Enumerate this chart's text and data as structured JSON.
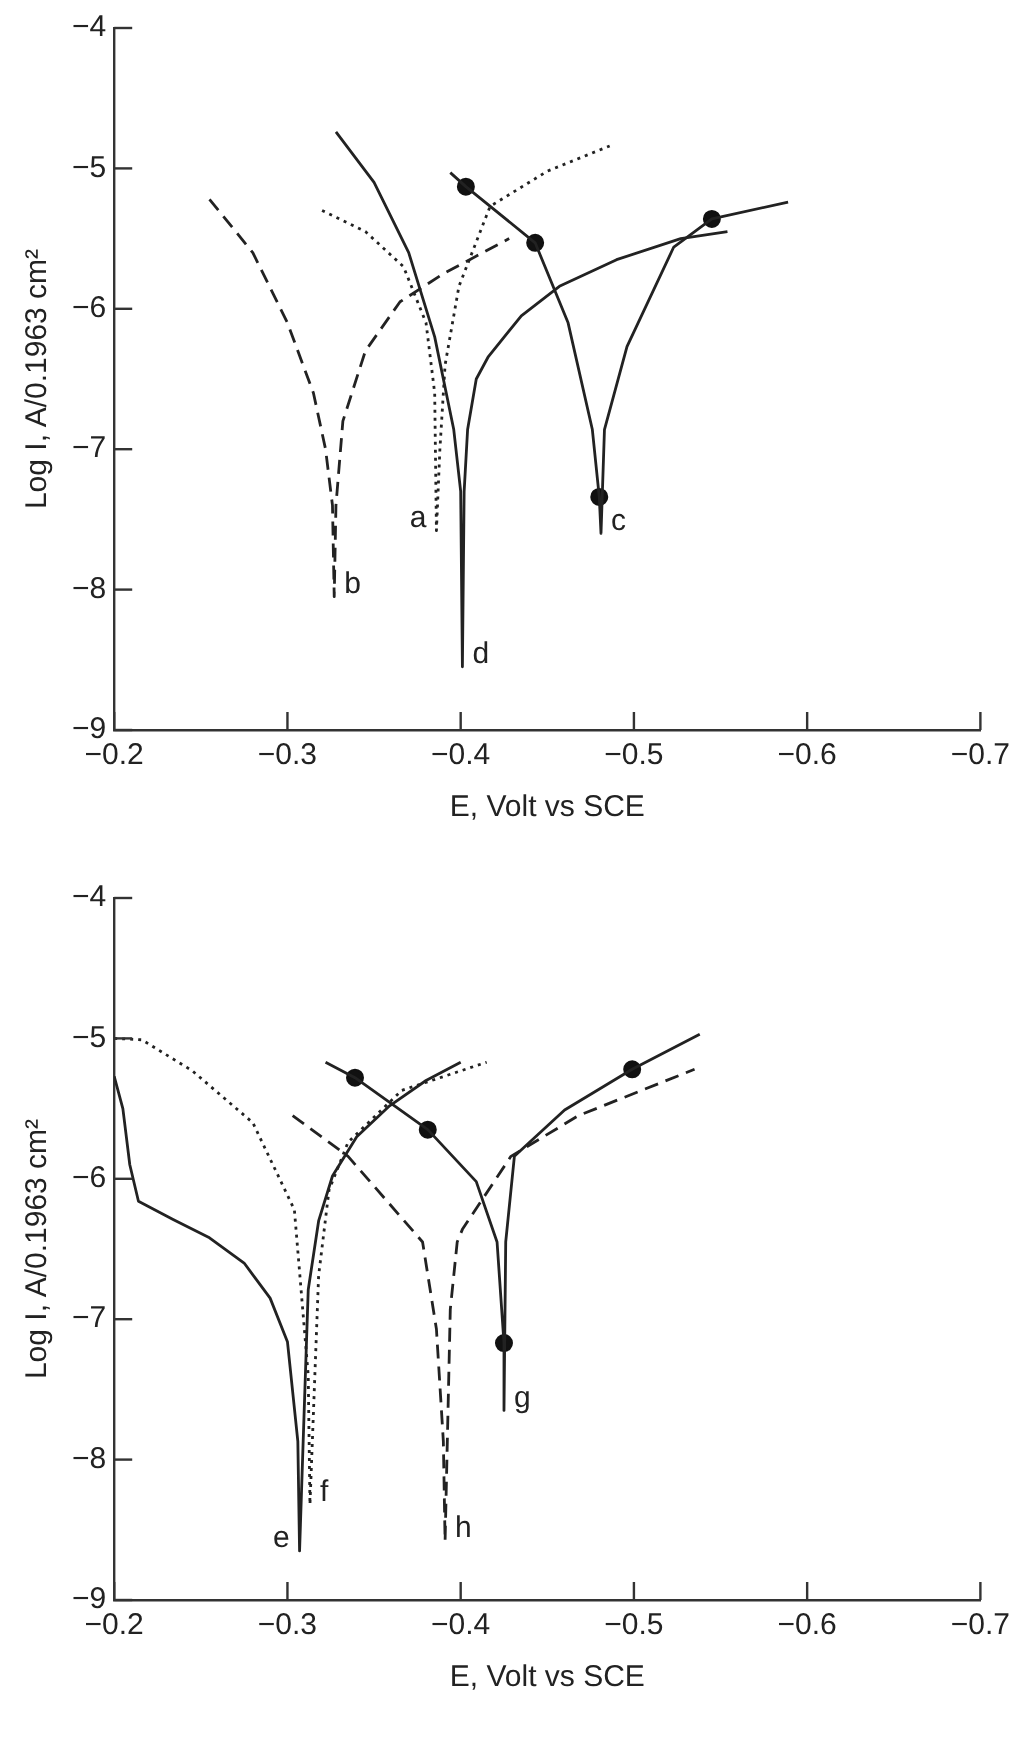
{
  "chart_data": [
    {
      "type": "line",
      "xlabel": "E, Volt vs SCE",
      "ylabel": "Log I, A/0.1963 cm²",
      "grid": false,
      "legend": false,
      "xlim": [
        -0.2,
        -0.7
      ],
      "xticks": [
        {
          "value": -0.2,
          "label": "−0.2"
        },
        {
          "value": -0.3,
          "label": "−0.3"
        },
        {
          "value": -0.4,
          "label": "−0.4"
        },
        {
          "value": -0.5,
          "label": "−0.5"
        },
        {
          "value": -0.6,
          "label": "−0.6"
        },
        {
          "value": -0.7,
          "label": "−0.7"
        }
      ],
      "ylim": [
        -9,
        -4
      ],
      "yticks": [
        {
          "value": -9,
          "label": "−9"
        },
        {
          "value": -8,
          "label": "−8"
        },
        {
          "value": -7,
          "label": "−7"
        },
        {
          "value": -6,
          "label": "−6"
        },
        {
          "value": -5,
          "label": "−5"
        },
        {
          "value": -4,
          "label": "−4"
        }
      ],
      "series": [
        {
          "name": "b",
          "type": "line",
          "color": "#222222",
          "line_style": "dashed",
          "marker": "none",
          "x": [
            -0.255,
            -0.28,
            -0.3,
            -0.315,
            -0.322,
            -0.326,
            -0.327,
            -0.328,
            -0.332,
            -0.345,
            -0.365,
            -0.39,
            -0.428
          ],
          "values": [
            -5.22,
            -5.6,
            -6.1,
            -6.6,
            -7.0,
            -7.4,
            -8.05,
            -7.4,
            -6.8,
            -6.3,
            -5.95,
            -5.75,
            -5.5
          ]
        },
        {
          "name": "a",
          "type": "line",
          "color": "#222222",
          "line_style": "dotted",
          "marker": "none",
          "x": [
            -0.32,
            -0.345,
            -0.367,
            -0.38,
            -0.385,
            -0.386,
            -0.388,
            -0.391,
            -0.399,
            -0.417,
            -0.45,
            -0.486
          ],
          "values": [
            -5.3,
            -5.45,
            -5.7,
            -6.1,
            -6.6,
            -7.58,
            -7.0,
            -6.4,
            -5.84,
            -5.27,
            -5.02,
            -4.84
          ]
        },
        {
          "name": "d",
          "type": "line",
          "color": "#222222",
          "line_style": "solid",
          "marker": "none",
          "x": [
            -0.328,
            -0.35,
            -0.37,
            -0.385,
            -0.396,
            -0.4,
            -0.401,
            -0.402,
            -0.404,
            -0.409,
            -0.416,
            -0.435,
            -0.457,
            -0.49,
            -0.527,
            -0.554
          ],
          "values": [
            -4.74,
            -5.1,
            -5.6,
            -6.2,
            -6.86,
            -7.3,
            -8.55,
            -7.3,
            -6.86,
            -6.5,
            -6.34,
            -6.05,
            -5.84,
            -5.65,
            -5.5,
            -5.45
          ]
        },
        {
          "name": "c",
          "type": "line",
          "color": "#222222",
          "line_style": "solid",
          "marker": "none",
          "x": [
            -0.394,
            -0.403,
            -0.443,
            -0.462,
            -0.476,
            -0.48,
            -0.481,
            -0.483,
            -0.496,
            -0.523,
            -0.545,
            -0.589
          ],
          "values": [
            -5.03,
            -5.13,
            -5.53,
            -6.1,
            -6.86,
            -7.34,
            -7.6,
            -6.86,
            -6.27,
            -5.56,
            -5.36,
            -5.24
          ]
        },
        {
          "type": "scatter",
          "color": "#111111",
          "marker": "circle",
          "x": [
            -0.403,
            -0.443,
            -0.48,
            -0.545
          ],
          "values": [
            -5.13,
            -5.53,
            -7.34,
            -5.36
          ]
        }
      ]
    },
    {
      "type": "line",
      "xlabel": "E, Volt vs SCE",
      "ylabel": "Log I, A/0.1963 cm²",
      "grid": false,
      "legend": false,
      "xlim": [
        -0.2,
        -0.7
      ],
      "xticks": [
        {
          "value": -0.2,
          "label": "−0.2"
        },
        {
          "value": -0.3,
          "label": "−0.3"
        },
        {
          "value": -0.4,
          "label": "−0.4"
        },
        {
          "value": -0.5,
          "label": "−0.5"
        },
        {
          "value": -0.6,
          "label": "−0.6"
        },
        {
          "value": -0.7,
          "label": "−0.7"
        }
      ],
      "ylim": [
        -9,
        -4
      ],
      "yticks": [
        {
          "value": -9,
          "label": "−9"
        },
        {
          "value": -8,
          "label": "−8"
        },
        {
          "value": -7,
          "label": "−7"
        },
        {
          "value": -6,
          "label": "−6"
        },
        {
          "value": -5,
          "label": "−5"
        },
        {
          "value": -4,
          "label": "−4"
        }
      ],
      "series": [
        {
          "name": "e",
          "type": "line",
          "color": "#222222",
          "line_style": "solid",
          "marker": "none",
          "x": [
            -0.2,
            -0.205,
            -0.209,
            -0.214,
            -0.234,
            -0.255,
            -0.275,
            -0.29,
            -0.3,
            -0.306,
            -0.307,
            -0.309,
            -0.312,
            -0.318,
            -0.326,
            -0.34,
            -0.359,
            -0.38,
            -0.4
          ],
          "values": [
            -5.27,
            -5.5,
            -5.9,
            -6.16,
            -6.29,
            -6.42,
            -6.6,
            -6.85,
            -7.16,
            -7.87,
            -8.65,
            -7.9,
            -6.79,
            -6.3,
            -5.98,
            -5.7,
            -5.48,
            -5.3,
            -5.17
          ]
        },
        {
          "name": "f",
          "type": "line",
          "color": "#222222",
          "line_style": "dotted",
          "marker": "none",
          "x": [
            -0.2,
            -0.216,
            -0.245,
            -0.28,
            -0.304,
            -0.312,
            -0.313,
            -0.318,
            -0.324,
            -0.335,
            -0.366,
            -0.415
          ],
          "values": [
            -5.0,
            -5.01,
            -5.23,
            -5.6,
            -6.22,
            -7.4,
            -8.32,
            -6.69,
            -6.08,
            -5.74,
            -5.37,
            -5.17
          ]
        },
        {
          "name": "h",
          "type": "line",
          "color": "#222222",
          "line_style": "dashed",
          "marker": "none",
          "x": [
            -0.303,
            -0.335,
            -0.378,
            -0.386,
            -0.39,
            -0.391,
            -0.394,
            -0.398,
            -0.401,
            -0.429,
            -0.468,
            -0.535
          ],
          "values": [
            -5.55,
            -5.84,
            -6.45,
            -7.07,
            -7.87,
            -8.58,
            -6.93,
            -6.45,
            -6.36,
            -5.84,
            -5.55,
            -5.22
          ]
        },
        {
          "name": "g",
          "type": "line",
          "color": "#222222",
          "line_style": "solid",
          "marker": "none",
          "x": [
            -0.322,
            -0.339,
            -0.381,
            -0.409,
            -0.421,
            -0.425,
            -0.425,
            -0.426,
            -0.431,
            -0.46,
            -0.499,
            -0.538
          ],
          "values": [
            -5.17,
            -5.28,
            -5.65,
            -6.02,
            -6.45,
            -7.17,
            -7.65,
            -6.45,
            -5.84,
            -5.51,
            -5.22,
            -4.97
          ]
        },
        {
          "type": "scatter",
          "color": "#111111",
          "marker": "circle",
          "x": [
            -0.339,
            -0.381,
            -0.425,
            -0.499
          ],
          "values": [
            -5.28,
            -5.65,
            -7.17,
            -5.22
          ]
        }
      ]
    }
  ]
}
